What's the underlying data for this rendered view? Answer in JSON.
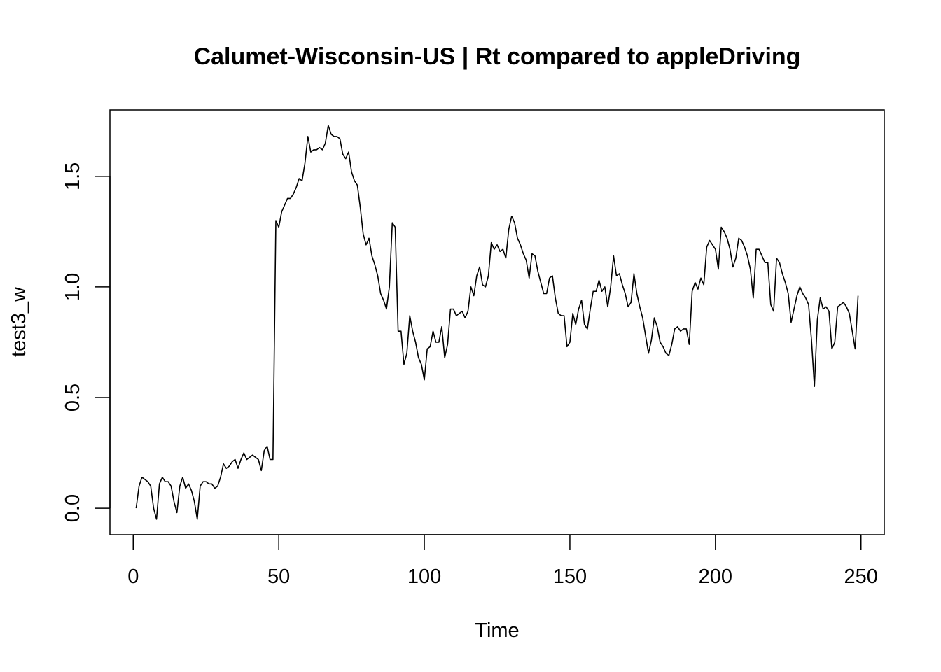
{
  "chart_data": {
    "type": "line",
    "title": "Calumet-Wisconsin-US | Rt compared to appleDriving",
    "xlabel": "Time",
    "ylabel": "test3_w",
    "xlim": [
      -8,
      258
    ],
    "ylim": [
      -0.12,
      1.8
    ],
    "x_ticks": [
      0,
      50,
      100,
      150,
      200,
      250
    ],
    "x_tick_labels": [
      "0",
      "50",
      "100",
      "150",
      "200",
      "250"
    ],
    "y_ticks": [
      0.0,
      0.5,
      1.0,
      1.5
    ],
    "y_tick_labels": [
      "0.0",
      "0.5",
      "1.0",
      "1.5"
    ],
    "grid": false,
    "legend": "none",
    "line_color": "#000000",
    "series": [
      {
        "x_start": 1,
        "values": [
          0.0,
          0.1,
          0.14,
          0.13,
          0.12,
          0.1,
          0.0,
          -0.05,
          0.11,
          0.14,
          0.12,
          0.12,
          0.1,
          0.03,
          -0.02,
          0.1,
          0.14,
          0.09,
          0.11,
          0.08,
          0.03,
          -0.05,
          0.1,
          0.12,
          0.12,
          0.11,
          0.11,
          0.09,
          0.1,
          0.14,
          0.2,
          0.18,
          0.19,
          0.21,
          0.22,
          0.18,
          0.22,
          0.25,
          0.22,
          0.23,
          0.24,
          0.23,
          0.22,
          0.17,
          0.26,
          0.28,
          0.22,
          0.22,
          1.3,
          1.27,
          1.34,
          1.37,
          1.4,
          1.4,
          1.42,
          1.45,
          1.49,
          1.48,
          1.56,
          1.68,
          1.61,
          1.62,
          1.62,
          1.63,
          1.62,
          1.65,
          1.73,
          1.69,
          1.68,
          1.68,
          1.67,
          1.6,
          1.58,
          1.61,
          1.52,
          1.48,
          1.46,
          1.36,
          1.24,
          1.19,
          1.22,
          1.14,
          1.1,
          1.05,
          0.97,
          0.94,
          0.9,
          1.0,
          1.29,
          1.27,
          0.8,
          0.8,
          0.65,
          0.7,
          0.87,
          0.8,
          0.75,
          0.68,
          0.65,
          0.58,
          0.72,
          0.73,
          0.8,
          0.75,
          0.75,
          0.82,
          0.68,
          0.74,
          0.9,
          0.9,
          0.87,
          0.88,
          0.89,
          0.86,
          0.89,
          1.0,
          0.96,
          1.05,
          1.09,
          1.01,
          1.0,
          1.05,
          1.2,
          1.17,
          1.19,
          1.16,
          1.17,
          1.13,
          1.26,
          1.32,
          1.29,
          1.22,
          1.19,
          1.15,
          1.12,
          1.04,
          1.15,
          1.14,
          1.07,
          1.02,
          0.97,
          0.97,
          1.04,
          1.05,
          0.95,
          0.88,
          0.87,
          0.87,
          0.73,
          0.75,
          0.88,
          0.83,
          0.9,
          0.94,
          0.83,
          0.81,
          0.9,
          0.98,
          0.98,
          1.03,
          0.98,
          1.0,
          0.91,
          1.0,
          1.14,
          1.05,
          1.06,
          1.01,
          0.97,
          0.91,
          0.93,
          1.06,
          0.97,
          0.91,
          0.86,
          0.78,
          0.7,
          0.76,
          0.86,
          0.82,
          0.75,
          0.73,
          0.7,
          0.69,
          0.74,
          0.81,
          0.82,
          0.8,
          0.81,
          0.81,
          0.74,
          0.98,
          1.02,
          0.99,
          1.04,
          1.01,
          1.18,
          1.21,
          1.19,
          1.17,
          1.08,
          1.27,
          1.25,
          1.22,
          1.17,
          1.09,
          1.13,
          1.22,
          1.21,
          1.18,
          1.14,
          1.08,
          0.95,
          1.17,
          1.17,
          1.14,
          1.11,
          1.11,
          0.92,
          0.89,
          1.13,
          1.11,
          1.06,
          1.02,
          0.97,
          0.84,
          0.9,
          0.96,
          1.0,
          0.97,
          0.95,
          0.92,
          0.76,
          0.55,
          0.85,
          0.95,
          0.9,
          0.91,
          0.89,
          0.72,
          0.75,
          0.91,
          0.92,
          0.93,
          0.91,
          0.88,
          0.8,
          0.72,
          0.96
        ]
      }
    ]
  }
}
